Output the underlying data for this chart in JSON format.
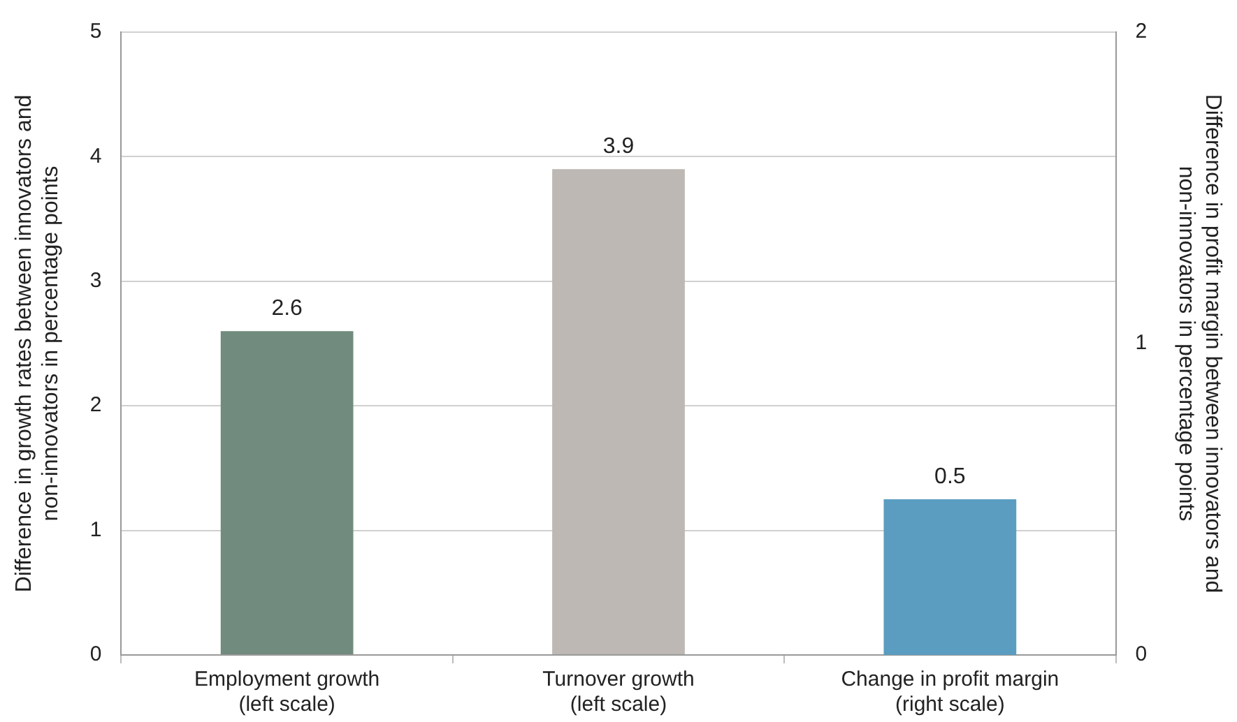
{
  "chart_data": {
    "type": "bar",
    "categories": [
      "Employment growth (left scale)",
      "Turnover growth (left scale)",
      "Change in profit margin (right scale)"
    ],
    "series": [
      {
        "color": "#718c7e",
        "colors": [
          "#718c7e",
          "#bdb8b3",
          null
        ],
        "values": [
          2.6,
          3.9,
          null
        ]
      },
      {
        "color": "#5b9dc1",
        "axis": "y2",
        "values": [
          null,
          null,
          0.5
        ]
      }
    ],
    "ylabel": "Difference in growth rates between innovators and non-innovators in percentage points",
    "y2label": "Difference in profit margin between innovators and non-innovators in percentage points",
    "ylim": [
      0,
      5
    ],
    "yticks": [
      0,
      1,
      2,
      3,
      4,
      5
    ],
    "y2lim": [
      0,
      2
    ],
    "y2ticks": [
      0,
      1,
      2
    ],
    "grid": "y",
    "legend": false,
    "data_labels": true
  }
}
